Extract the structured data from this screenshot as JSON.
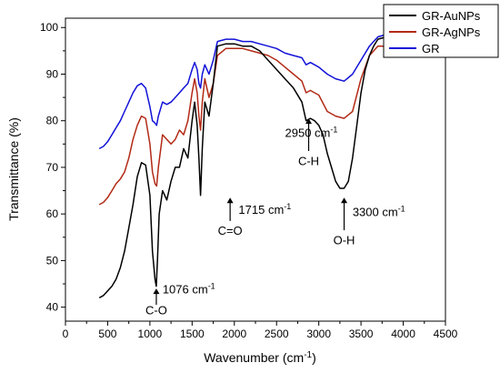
{
  "chart_data": {
    "type": "line",
    "xlabel": "Wavenumber (cm",
    "xlabel_sup": "-1",
    "xlabel_close": ")",
    "ylabel": "Transmittance (%)",
    "xlim": [
      0,
      4500
    ],
    "ylim": [
      37,
      102
    ],
    "xticks": [
      0,
      500,
      1000,
      1500,
      2000,
      2500,
      3000,
      3500,
      4000,
      4500
    ],
    "yticks": [
      40,
      50,
      60,
      70,
      80,
      90,
      100
    ],
    "legend_position": "top-right",
    "series": [
      {
        "name": "GR-AuNPs",
        "color": "#000000",
        "points": [
          [
            400,
            42
          ],
          [
            450,
            42.5
          ],
          [
            500,
            43.5
          ],
          [
            550,
            44.5
          ],
          [
            600,
            46
          ],
          [
            650,
            48.5
          ],
          [
            700,
            52
          ],
          [
            750,
            57
          ],
          [
            800,
            62
          ],
          [
            850,
            68
          ],
          [
            900,
            71
          ],
          [
            950,
            70.5
          ],
          [
            1000,
            64
          ],
          [
            1030,
            52
          ],
          [
            1060,
            46
          ],
          [
            1076,
            44.5
          ],
          [
            1090,
            50
          ],
          [
            1110,
            60
          ],
          [
            1150,
            65
          ],
          [
            1200,
            63
          ],
          [
            1250,
            67
          ],
          [
            1300,
            70
          ],
          [
            1350,
            70
          ],
          [
            1400,
            74
          ],
          [
            1450,
            72
          ],
          [
            1500,
            80
          ],
          [
            1530,
            84
          ],
          [
            1560,
            79
          ],
          [
            1580,
            72
          ],
          [
            1600,
            64
          ],
          [
            1620,
            74
          ],
          [
            1650,
            84
          ],
          [
            1700,
            81
          ],
          [
            1750,
            88
          ],
          [
            1800,
            96
          ],
          [
            1900,
            96.5
          ],
          [
            2000,
            96.5
          ],
          [
            2100,
            96
          ],
          [
            2200,
            96
          ],
          [
            2300,
            95
          ],
          [
            2400,
            93
          ],
          [
            2500,
            91
          ],
          [
            2600,
            89
          ],
          [
            2700,
            87
          ],
          [
            2800,
            84
          ],
          [
            2850,
            80
          ],
          [
            2900,
            80.5
          ],
          [
            2950,
            80
          ],
          [
            3000,
            79
          ],
          [
            3050,
            77
          ],
          [
            3100,
            73
          ],
          [
            3150,
            70
          ],
          [
            3200,
            67
          ],
          [
            3250,
            65.5
          ],
          [
            3300,
            65.5
          ],
          [
            3350,
            67
          ],
          [
            3400,
            72
          ],
          [
            3450,
            79
          ],
          [
            3500,
            86
          ],
          [
            3550,
            91
          ],
          [
            3600,
            94
          ],
          [
            3650,
            96
          ],
          [
            3700,
            97.5
          ],
          [
            3800,
            98
          ],
          [
            3900,
            98
          ],
          [
            4000,
            98.5
          ]
        ]
      },
      {
        "name": "GR-AgNPs",
        "color": "#b22a16",
        "points": [
          [
            400,
            62
          ],
          [
            450,
            62.5
          ],
          [
            500,
            63.5
          ],
          [
            550,
            65
          ],
          [
            600,
            66.5
          ],
          [
            650,
            67.5
          ],
          [
            700,
            69
          ],
          [
            750,
            72
          ],
          [
            800,
            76
          ],
          [
            850,
            79
          ],
          [
            900,
            81
          ],
          [
            950,
            80.5
          ],
          [
            1000,
            75
          ],
          [
            1030,
            69
          ],
          [
            1060,
            66.5
          ],
          [
            1080,
            66
          ],
          [
            1100,
            70
          ],
          [
            1150,
            77
          ],
          [
            1200,
            76
          ],
          [
            1250,
            75
          ],
          [
            1300,
            76
          ],
          [
            1350,
            78
          ],
          [
            1400,
            77
          ],
          [
            1450,
            80
          ],
          [
            1500,
            86
          ],
          [
            1530,
            89
          ],
          [
            1560,
            86
          ],
          [
            1580,
            81
          ],
          [
            1600,
            78
          ],
          [
            1620,
            84
          ],
          [
            1650,
            89
          ],
          [
            1700,
            85
          ],
          [
            1750,
            88
          ],
          [
            1800,
            94
          ],
          [
            1900,
            95.5
          ],
          [
            2000,
            95.5
          ],
          [
            2100,
            95.5
          ],
          [
            2200,
            95
          ],
          [
            2300,
            94.5
          ],
          [
            2400,
            94
          ],
          [
            2500,
            93
          ],
          [
            2600,
            91.5
          ],
          [
            2700,
            90
          ],
          [
            2800,
            88.5
          ],
          [
            2850,
            86
          ],
          [
            2900,
            86.5
          ],
          [
            2950,
            86
          ],
          [
            3000,
            85.5
          ],
          [
            3100,
            82
          ],
          [
            3200,
            81
          ],
          [
            3300,
            80.5
          ],
          [
            3400,
            82
          ],
          [
            3500,
            89
          ],
          [
            3600,
            94
          ],
          [
            3700,
            96
          ],
          [
            3800,
            96
          ],
          [
            3900,
            96
          ],
          [
            4000,
            95.5
          ]
        ]
      },
      {
        "name": "GR",
        "color": "#1212d8",
        "points": [
          [
            400,
            74
          ],
          [
            450,
            74.5
          ],
          [
            500,
            75.5
          ],
          [
            550,
            77
          ],
          [
            600,
            78.5
          ],
          [
            650,
            80
          ],
          [
            700,
            82
          ],
          [
            750,
            84
          ],
          [
            800,
            86
          ],
          [
            850,
            87.5
          ],
          [
            900,
            88
          ],
          [
            950,
            87
          ],
          [
            1000,
            83
          ],
          [
            1030,
            80
          ],
          [
            1060,
            79.5
          ],
          [
            1080,
            79
          ],
          [
            1100,
            81
          ],
          [
            1150,
            84
          ],
          [
            1200,
            83.5
          ],
          [
            1250,
            84
          ],
          [
            1300,
            85
          ],
          [
            1350,
            86
          ],
          [
            1400,
            87
          ],
          [
            1450,
            88
          ],
          [
            1500,
            91
          ],
          [
            1530,
            92.5
          ],
          [
            1560,
            91
          ],
          [
            1580,
            88
          ],
          [
            1600,
            87
          ],
          [
            1620,
            90
          ],
          [
            1650,
            92
          ],
          [
            1700,
            90
          ],
          [
            1750,
            93
          ],
          [
            1800,
            97
          ],
          [
            1900,
            97.5
          ],
          [
            2000,
            97.5
          ],
          [
            2100,
            97
          ],
          [
            2200,
            97
          ],
          [
            2300,
            96.5
          ],
          [
            2400,
            96
          ],
          [
            2500,
            95.5
          ],
          [
            2600,
            94.5
          ],
          [
            2700,
            94
          ],
          [
            2800,
            93.5
          ],
          [
            2850,
            92
          ],
          [
            2900,
            92.5
          ],
          [
            2950,
            92
          ],
          [
            3000,
            91.5
          ],
          [
            3100,
            90
          ],
          [
            3200,
            89
          ],
          [
            3300,
            88.5
          ],
          [
            3400,
            90
          ],
          [
            3500,
            93
          ],
          [
            3600,
            96
          ],
          [
            3700,
            98
          ],
          [
            3800,
            98.5
          ],
          [
            3900,
            98.5
          ],
          [
            4000,
            98
          ]
        ]
      }
    ],
    "annotations": [
      {
        "id": "co",
        "peak": "1076 cm",
        "sup": "-1",
        "group": "C-O",
        "arrow_x": 1076,
        "arrow_y_from": 40.5,
        "arrow_y_to": 44,
        "label_x": 1150,
        "label_y": 43,
        "group_x": 1076,
        "group_y": 38.5
      },
      {
        "id": "co-double",
        "peak": "1715 cm",
        "sup": "-1",
        "group": "C=O",
        "arrow_x": 1950,
        "arrow_y_from": 58.5,
        "arrow_y_to": 63.5,
        "label_x": 2050,
        "label_y": 60,
        "group_x": 1950,
        "group_y": 55.5
      },
      {
        "id": "ch",
        "peak": "2950 cm",
        "sup": "-1",
        "group": "C-H",
        "arrow_x": 2880,
        "arrow_y_from": 73.5,
        "arrow_y_to": 80.5,
        "label_x": 2600,
        "label_y": 76.5,
        "group_x": 2880,
        "group_y": 70.5
      },
      {
        "id": "oh",
        "peak": "3300 cm",
        "sup": "-1",
        "group": "O-H",
        "arrow_x": 3300,
        "arrow_y_from": 56.5,
        "arrow_y_to": 63.5,
        "label_x": 3400,
        "label_y": 59.5,
        "group_x": 3300,
        "group_y": 53.5
      }
    ]
  }
}
